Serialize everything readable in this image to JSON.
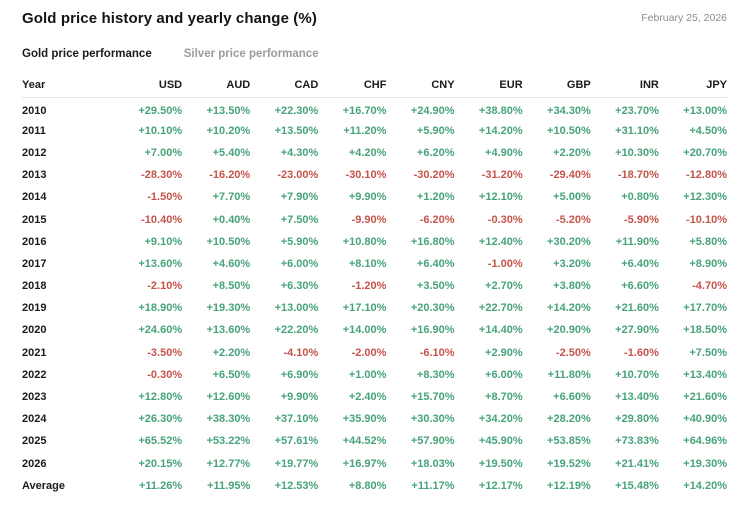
{
  "page": {
    "title": "Gold price history and yearly change (%)",
    "date": "February 25, 2026"
  },
  "tabs": [
    {
      "label": "Gold price performance",
      "active": true
    },
    {
      "label": "Silver price performance",
      "active": false
    }
  ],
  "colors": {
    "positive": "#47a379",
    "negative": "#c5544a"
  },
  "chart_data": {
    "type": "table",
    "columns": [
      "Year",
      "USD",
      "AUD",
      "CAD",
      "CHF",
      "CNY",
      "EUR",
      "GBP",
      "INR",
      "JPY"
    ],
    "rows": [
      {
        "label": "2010",
        "values": [
          "+29.50%",
          "+13.50%",
          "+22.30%",
          "+16.70%",
          "+24.90%",
          "+38.80%",
          "+34.30%",
          "+23.70%",
          "+13.00%"
        ]
      },
      {
        "label": "2011",
        "values": [
          "+10.10%",
          "+10.20%",
          "+13.50%",
          "+11.20%",
          "+5.90%",
          "+14.20%",
          "+10.50%",
          "+31.10%",
          "+4.50%"
        ]
      },
      {
        "label": "2012",
        "values": [
          "+7.00%",
          "+5.40%",
          "+4.30%",
          "+4.20%",
          "+6.20%",
          "+4.90%",
          "+2.20%",
          "+10.30%",
          "+20.70%"
        ]
      },
      {
        "label": "2013",
        "values": [
          "-28.30%",
          "-16.20%",
          "-23.00%",
          "-30.10%",
          "-30.20%",
          "-31.20%",
          "-29.40%",
          "-18.70%",
          "-12.80%"
        ]
      },
      {
        "label": "2014",
        "values": [
          "-1.50%",
          "+7.70%",
          "+7.90%",
          "+9.90%",
          "+1.20%",
          "+12.10%",
          "+5.00%",
          "+0.80%",
          "+12.30%"
        ]
      },
      {
        "label": "2015",
        "values": [
          "-10.40%",
          "+0.40%",
          "+7.50%",
          "-9.90%",
          "-6.20%",
          "-0.30%",
          "-5.20%",
          "-5.90%",
          "-10.10%"
        ]
      },
      {
        "label": "2016",
        "values": [
          "+9.10%",
          "+10.50%",
          "+5.90%",
          "+10.80%",
          "+16.80%",
          "+12.40%",
          "+30.20%",
          "+11.90%",
          "+5.80%"
        ]
      },
      {
        "label": "2017",
        "values": [
          "+13.60%",
          "+4.60%",
          "+6.00%",
          "+8.10%",
          "+6.40%",
          "-1.00%",
          "+3.20%",
          "+6.40%",
          "+8.90%"
        ]
      },
      {
        "label": "2018",
        "values": [
          "-2.10%",
          "+8.50%",
          "+6.30%",
          "-1.20%",
          "+3.50%",
          "+2.70%",
          "+3.80%",
          "+6.60%",
          "-4.70%"
        ]
      },
      {
        "label": "2019",
        "values": [
          "+18.90%",
          "+19.30%",
          "+13.00%",
          "+17.10%",
          "+20.30%",
          "+22.70%",
          "+14.20%",
          "+21.60%",
          "+17.70%"
        ]
      },
      {
        "label": "2020",
        "values": [
          "+24.60%",
          "+13.60%",
          "+22.20%",
          "+14.00%",
          "+16.90%",
          "+14.40%",
          "+20.90%",
          "+27.90%",
          "+18.50%"
        ]
      },
      {
        "label": "2021",
        "values": [
          "-3.50%",
          "+2.20%",
          "-4.10%",
          "-2.00%",
          "-6.10%",
          "+2.90%",
          "-2.50%",
          "-1.60%",
          "+7.50%"
        ]
      },
      {
        "label": "2022",
        "values": [
          "-0.30%",
          "+6.50%",
          "+6.90%",
          "+1.00%",
          "+8.30%",
          "+6.00%",
          "+11.80%",
          "+10.70%",
          "+13.40%"
        ]
      },
      {
        "label": "2023",
        "values": [
          "+12.80%",
          "+12.60%",
          "+9.90%",
          "+2.40%",
          "+15.70%",
          "+8.70%",
          "+6.60%",
          "+13.40%",
          "+21.60%"
        ]
      },
      {
        "label": "2024",
        "values": [
          "+26.30%",
          "+38.30%",
          "+37.10%",
          "+35.90%",
          "+30.30%",
          "+34.20%",
          "+28.20%",
          "+29.80%",
          "+40.90%"
        ]
      },
      {
        "label": "2025",
        "values": [
          "+65.52%",
          "+53.22%",
          "+57.61%",
          "+44.52%",
          "+57.90%",
          "+45.90%",
          "+53.85%",
          "+73.83%",
          "+64.96%"
        ]
      },
      {
        "label": "2026",
        "values": [
          "+20.15%",
          "+12.77%",
          "+19.77%",
          "+16.97%",
          "+18.03%",
          "+19.50%",
          "+19.52%",
          "+21.41%",
          "+19.30%"
        ]
      },
      {
        "label": "Average",
        "values": [
          "+11.26%",
          "+11.95%",
          "+12.53%",
          "+8.80%",
          "+11.17%",
          "+12.17%",
          "+12.19%",
          "+15.48%",
          "+14.20%"
        ]
      }
    ]
  }
}
